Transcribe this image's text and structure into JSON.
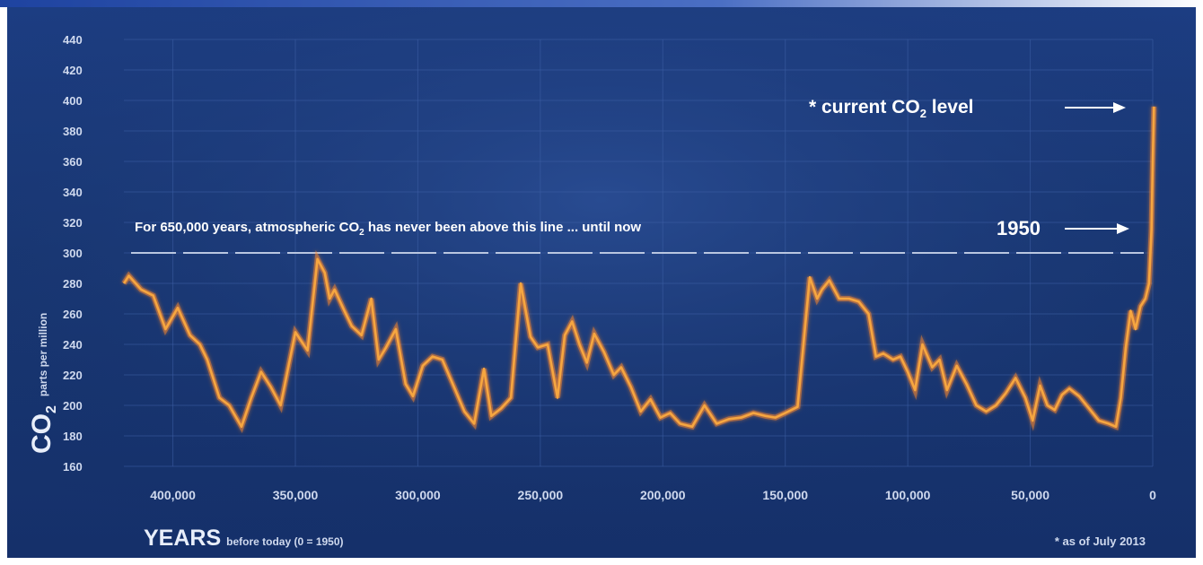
{
  "chart_data": {
    "type": "line",
    "ylabel_main": "CO",
    "ylabel_sub": "2",
    "ylabel_unit": "parts per million",
    "xlabel_main": "YEARS",
    "xlabel_sub": "before today (0 = 1950)",
    "ylim": [
      160,
      440
    ],
    "yticks": [
      160,
      180,
      200,
      220,
      240,
      260,
      280,
      300,
      320,
      340,
      360,
      380,
      400,
      420,
      440
    ],
    "xlim": [
      420000,
      0
    ],
    "xticks": [
      400000,
      350000,
      300000,
      250000,
      200000,
      150000,
      100000,
      50000,
      0
    ],
    "xtick_labels": [
      "400,000",
      "350,000",
      "300,000",
      "250,000",
      "200,000",
      "150,000",
      "100,000",
      "50,000",
      "0"
    ],
    "threshold": {
      "value": 300,
      "label": "For 650,000 years, atmospheric CO",
      "label_sub": "2",
      "label_rest": " has never been above this line ... until now"
    },
    "annotations": {
      "current_label": "* current CO",
      "current_sub": "2",
      "current_rest": " level",
      "year_1950": "1950",
      "footnote": "* as of July 2013"
    },
    "series": [
      {
        "color": "#f6a640",
        "x": [
          420000,
          418000,
          413000,
          408000,
          403000,
          398000,
          393000,
          389000,
          386000,
          381000,
          377000,
          372000,
          368000,
          364000,
          360000,
          356000,
          350000,
          345000,
          341000,
          338000,
          336000,
          334000,
          330000,
          327000,
          323000,
          319000,
          316000,
          313000,
          309000,
          305000,
          302000,
          298000,
          294000,
          290000,
          286000,
          281000,
          277000,
          273000,
          270000,
          266000,
          262000,
          258000,
          254000,
          251000,
          247000,
          243000,
          240000,
          237000,
          234000,
          231000,
          228000,
          224000,
          220000,
          217000,
          213000,
          209000,
          205000,
          201000,
          197000,
          193000,
          188000,
          183000,
          178000,
          173000,
          168000,
          163000,
          158000,
          154000,
          150000,
          145000,
          140000,
          137000,
          135000,
          132000,
          128000,
          124000,
          120000,
          116000,
          113000,
          110000,
          106000,
          103000,
          100000,
          97000,
          94000,
          90000,
          87000,
          84000,
          80000,
          76000,
          72000,
          68000,
          64000,
          60000,
          56000,
          52000,
          49000,
          46000,
          43000,
          40000,
          37000,
          34000,
          30000,
          26000,
          22000,
          18000,
          15000,
          13000,
          11000,
          9000,
          7000,
          5000,
          3000,
          1500,
          500,
          0,
          -500
        ],
        "y": [
          280,
          285,
          276,
          272,
          250,
          264,
          246,
          240,
          230,
          205,
          200,
          186,
          205,
          222,
          212,
          200,
          248,
          236,
          296,
          287,
          270,
          276,
          262,
          252,
          246,
          270,
          230,
          238,
          250,
          214,
          206,
          226,
          232,
          230,
          215,
          196,
          188,
          224,
          193,
          198,
          205,
          280,
          245,
          238,
          240,
          205,
          246,
          255,
          240,
          228,
          247,
          235,
          220,
          225,
          212,
          196,
          204,
          192,
          195,
          188,
          186,
          200,
          188,
          191,
          192,
          195,
          193,
          192,
          195,
          199,
          284,
          270,
          276,
          282,
          270,
          270,
          268,
          260,
          232,
          234,
          230,
          232,
          222,
          210,
          240,
          225,
          230,
          210,
          226,
          214,
          200,
          196,
          200,
          208,
          218,
          205,
          190,
          213,
          200,
          197,
          207,
          211,
          206,
          198,
          190,
          188,
          186,
          205,
          238,
          262,
          250,
          265,
          270,
          280,
          315,
          360,
          396
        ]
      }
    ]
  }
}
